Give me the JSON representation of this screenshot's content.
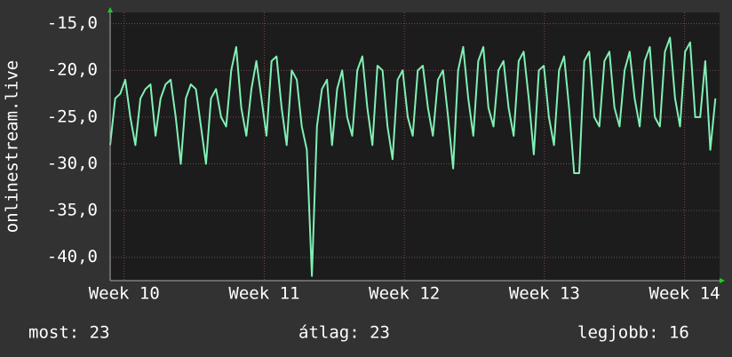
{
  "chart_data": {
    "type": "line",
    "y_label": "onlinestream.live",
    "ylim": [
      -42.5,
      -13.8
    ],
    "yticks": [
      {
        "value": -15,
        "label": "-15,0"
      },
      {
        "value": -20,
        "label": "-20,0"
      },
      {
        "value": -25,
        "label": "-25,0"
      },
      {
        "value": -30,
        "label": "-30,0"
      },
      {
        "value": -35,
        "label": "-35,0"
      },
      {
        "value": -40,
        "label": "-40,0"
      }
    ],
    "xlim": [
      9.9,
      14.25
    ],
    "xticks": [
      {
        "value": 10,
        "label": "Week 10"
      },
      {
        "value": 11,
        "label": "Week 11"
      },
      {
        "value": 12,
        "label": "Week 12"
      },
      {
        "value": 13,
        "label": "Week 13"
      },
      {
        "value": 14,
        "label": "Week 14"
      }
    ],
    "grid": true,
    "x": [
      9.9,
      9.936,
      9.972,
      10.008,
      10.044,
      10.08,
      10.116,
      10.152,
      10.188,
      10.224,
      10.26,
      10.296,
      10.332,
      10.368,
      10.404,
      10.44,
      10.476,
      10.512,
      10.548,
      10.584,
      10.62,
      10.656,
      10.692,
      10.728,
      10.764,
      10.8,
      10.836,
      10.872,
      10.908,
      10.944,
      10.98,
      11.016,
      11.052,
      11.088,
      11.124,
      11.16,
      11.196,
      11.232,
      11.268,
      11.304,
      11.34,
      11.376,
      11.412,
      11.448,
      11.484,
      11.52,
      11.556,
      11.592,
      11.628,
      11.664,
      11.7,
      11.736,
      11.772,
      11.808,
      11.844,
      11.88,
      11.916,
      11.952,
      11.988,
      12.024,
      12.06,
      12.096,
      12.132,
      12.168,
      12.204,
      12.24,
      12.276,
      12.312,
      12.348,
      12.384,
      12.42,
      12.456,
      12.492,
      12.528,
      12.564,
      12.6,
      12.636,
      12.672,
      12.708,
      12.744,
      12.78,
      12.816,
      12.852,
      12.888,
      12.924,
      12.96,
      12.996,
      13.032,
      13.068,
      13.104,
      13.14,
      13.176,
      13.212,
      13.248,
      13.284,
      13.32,
      13.356,
      13.392,
      13.428,
      13.464,
      13.5,
      13.536,
      13.572,
      13.608,
      13.644,
      13.68,
      13.716,
      13.752,
      13.788,
      13.824,
      13.86,
      13.896,
      13.932,
      13.968,
      14.004,
      14.04,
      14.076,
      14.112,
      14.148,
      14.184,
      14.22
    ],
    "series": [
      {
        "color": "#80f0b4",
        "values": [
          -28,
          -23,
          -22.5,
          -21,
          -25,
          -28,
          -23,
          -22,
          -21.5,
          -27,
          -23,
          -21.5,
          -21,
          -25,
          -30,
          -23,
          -21.5,
          -22,
          -26,
          -30,
          -23,
          -22,
          -25,
          -26,
          -20,
          -17.5,
          -24,
          -27,
          -22,
          -19,
          -23,
          -27,
          -19,
          -18.5,
          -24,
          -28,
          -20,
          -21,
          -26,
          -28.5,
          -42,
          -26,
          -22,
          -21,
          -28,
          -22,
          -20,
          -25,
          -27,
          -20,
          -18.5,
          -24,
          -28,
          -19.5,
          -20,
          -26,
          -29.5,
          -21,
          -20,
          -25,
          -27,
          -20,
          -19.5,
          -24,
          -27,
          -21,
          -20,
          -25,
          -30.5,
          -20,
          -17.5,
          -23,
          -27,
          -19,
          -17.5,
          -24,
          -26,
          -20,
          -19,
          -24,
          -27,
          -19,
          -18,
          -23,
          -29,
          -20,
          -19.5,
          -25,
          -28,
          -20,
          -18.5,
          -24,
          -31,
          -31,
          -19,
          -18,
          -25,
          -26,
          -19,
          -18,
          -24,
          -26,
          -20,
          -18,
          -23,
          -26,
          -19,
          -17.5,
          -25,
          -26,
          -18,
          -16.5,
          -23,
          -26,
          -18,
          -17,
          -25,
          -25,
          -19,
          -28.5,
          -23
        ]
      }
    ],
    "footer": [
      "most: 23",
      "átlag: 23",
      "legjobb: 16"
    ]
  }
}
